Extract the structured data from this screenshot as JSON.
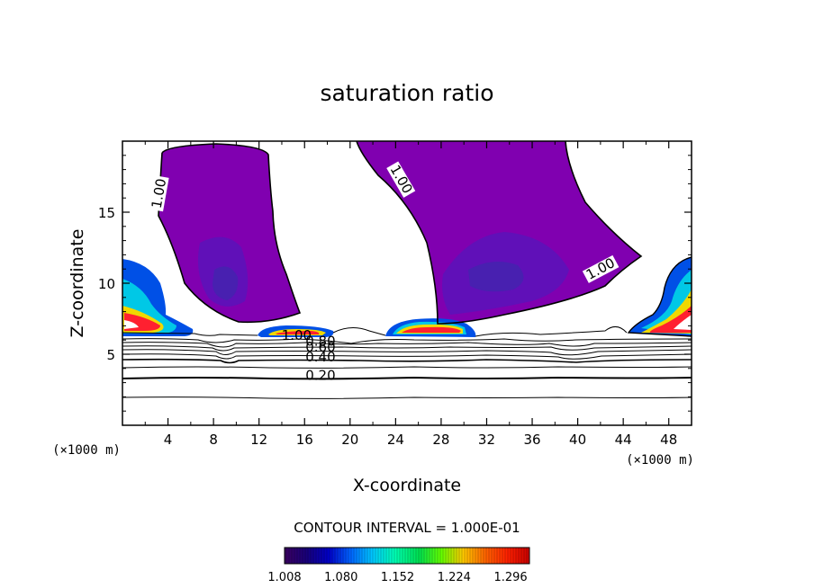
{
  "chart_data": {
    "type": "contour",
    "title": "saturation ratio",
    "xlabel": "X-coordinate",
    "ylabel": "Z-coordinate",
    "x_unit": "(×1000 m)",
    "z_unit": "(×1000 m)",
    "xlim": [
      0,
      50
    ],
    "ylim": [
      0,
      20
    ],
    "x_ticks": [
      4,
      8,
      12,
      16,
      20,
      24,
      28,
      32,
      36,
      40,
      44,
      48
    ],
    "y_ticks": [
      5,
      10,
      15
    ],
    "contour_interval": "CONTOUR INTERVAL = 1.000E-01",
    "contour_labels": [
      {
        "text": "1.00",
        "x": 3.2,
        "z": 16.0
      },
      {
        "text": "1.00",
        "x": 24.5,
        "z": 17.0
      },
      {
        "text": "1.00",
        "x": 42.0,
        "z": 10.7
      },
      {
        "text": "1.00",
        "x": 15.3,
        "z": 6.0
      },
      {
        "text": "0.80",
        "x": 17.4,
        "z": 5.6
      },
      {
        "text": "0.60",
        "x": 17.4,
        "z": 5.2
      },
      {
        "text": "0.40",
        "x": 17.4,
        "z": 4.5
      },
      {
        "text": "0.20",
        "x": 17.4,
        "z": 3.2
      }
    ],
    "colorbar": {
      "labels": [
        "1.008",
        "1.080",
        "1.152",
        "1.224",
        "1.296"
      ],
      "range": [
        1.008,
        1.32
      ],
      "colors": [
        "#3a0060",
        "#18007a",
        "#0000c8",
        "#0064ff",
        "#00c8ff",
        "#00ffb4",
        "#00e050",
        "#64ff00",
        "#ffc800",
        "#ff6400",
        "#ff2000",
        "#c80000"
      ]
    },
    "fill_colors": {
      "ss_low": "#8000b0",
      "ss_mid": "#6010b8",
      "ss_deep": "#4820b0",
      "ice_blue": "#0050e6",
      "ice_cyan": "#00c8e6",
      "ice_green": "#30e070",
      "ice_yellow": "#f0d800",
      "ice_orange": "#ff7020",
      "ice_red": "#ff2030"
    }
  }
}
